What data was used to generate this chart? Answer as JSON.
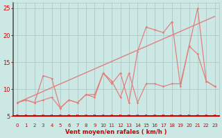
{
  "xlabel": "Vent moyen/en rafales ( km/h )",
  "bg_color": "#cce8e4",
  "grid_color": "#b0c8c4",
  "line_color": "#e08080",
  "arrow_color": "#cc0000",
  "spine_left_color": "#555555",
  "xlim": [
    -0.5,
    23.5
  ],
  "ylim": [
    5,
    26
  ],
  "yticks": [
    5,
    10,
    15,
    20,
    25
  ],
  "xticks": [
    0,
    1,
    2,
    3,
    4,
    5,
    6,
    7,
    8,
    9,
    10,
    11,
    12,
    13,
    14,
    15,
    16,
    17,
    18,
    19,
    20,
    21,
    22,
    23
  ],
  "line1_x": [
    0,
    1,
    2,
    3,
    4,
    5,
    6,
    7,
    8,
    9,
    10,
    11,
    12,
    13,
    14,
    15,
    16,
    17,
    18,
    19,
    20,
    21,
    22,
    23
  ],
  "line1_y": [
    7.5,
    8.0,
    7.5,
    12.5,
    12.0,
    6.5,
    8.0,
    7.5,
    9.0,
    8.5,
    13.0,
    11.0,
    13.0,
    7.5,
    17.0,
    21.5,
    21.0,
    20.5,
    22.5,
    10.5,
    18.0,
    25.0,
    11.5,
    10.5
  ],
  "line2_x": [
    0,
    1,
    2,
    3,
    4,
    5,
    6,
    7,
    8,
    9,
    10,
    11,
    12,
    13,
    14,
    15,
    16,
    17,
    18,
    19,
    20,
    21,
    22,
    23
  ],
  "line2_y": [
    7.5,
    8.0,
    7.5,
    8.0,
    8.5,
    6.5,
    8.0,
    7.5,
    9.0,
    9.0,
    13.0,
    11.5,
    8.5,
    13.0,
    7.5,
    11.0,
    11.0,
    10.5,
    11.0,
    11.0,
    18.0,
    16.5,
    11.5,
    10.5
  ],
  "line3_x": [
    0,
    23
  ],
  "line3_y": [
    7.5,
    23.5
  ],
  "xlabel_fontsize": 6,
  "tick_fontsize": 5,
  "ytick_fontsize": 6
}
